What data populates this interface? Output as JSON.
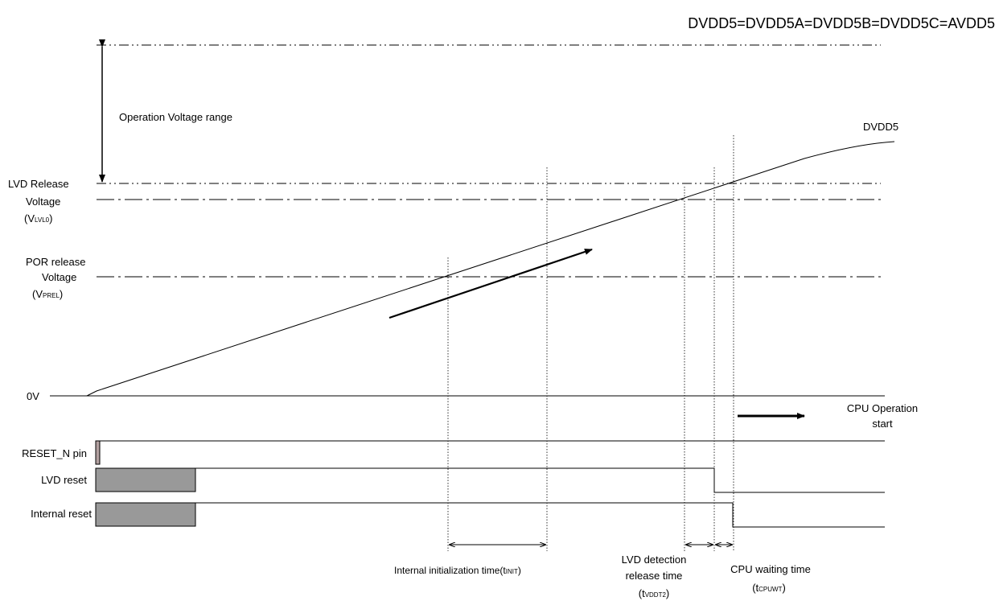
{
  "header": {
    "supply_equation": "DVDD5=DVDD5A=DVDD5B=DVDD5C=AVDD5"
  },
  "voltage_levels": {
    "operation_range": "Operation Voltage range",
    "lvd_release": {
      "line1": "LVD Release",
      "line2": "Voltage",
      "sym_open": "(V",
      "sym_sub": "LVL0",
      "sym_close": ")"
    },
    "por_release": {
      "line1": "POR release",
      "line2": "Voltage",
      "sym_open": "(V",
      "sym_sub": "PREL",
      "sym_close": ")"
    },
    "zero": "0V"
  },
  "curve": {
    "label": "DVDD5"
  },
  "cpu_start": {
    "line1": "CPU Operation",
    "line2": "start"
  },
  "signals": [
    {
      "label": "RESET_N pin"
    },
    {
      "label": "LVD reset"
    },
    {
      "label": "Internal reset"
    }
  ],
  "timings": {
    "internal_init": {
      "text": "Internal initialization time(t",
      "sub": "INIT",
      "close": ")"
    },
    "lvd_detection": {
      "line1": "LVD detection",
      "line2": "release time",
      "sym_open": "(t",
      "sym_sub": "VDDT2",
      "sym_close": ")"
    },
    "cpu_waiting": {
      "line1": "CPU waiting time",
      "sym_open": "(t",
      "sym_sub": "CPUWT",
      "sym_close": ")"
    }
  },
  "colors": {
    "line": "#000000",
    "reset_fill": "#999999",
    "reset_pin_fill": "#b3a1a1"
  }
}
